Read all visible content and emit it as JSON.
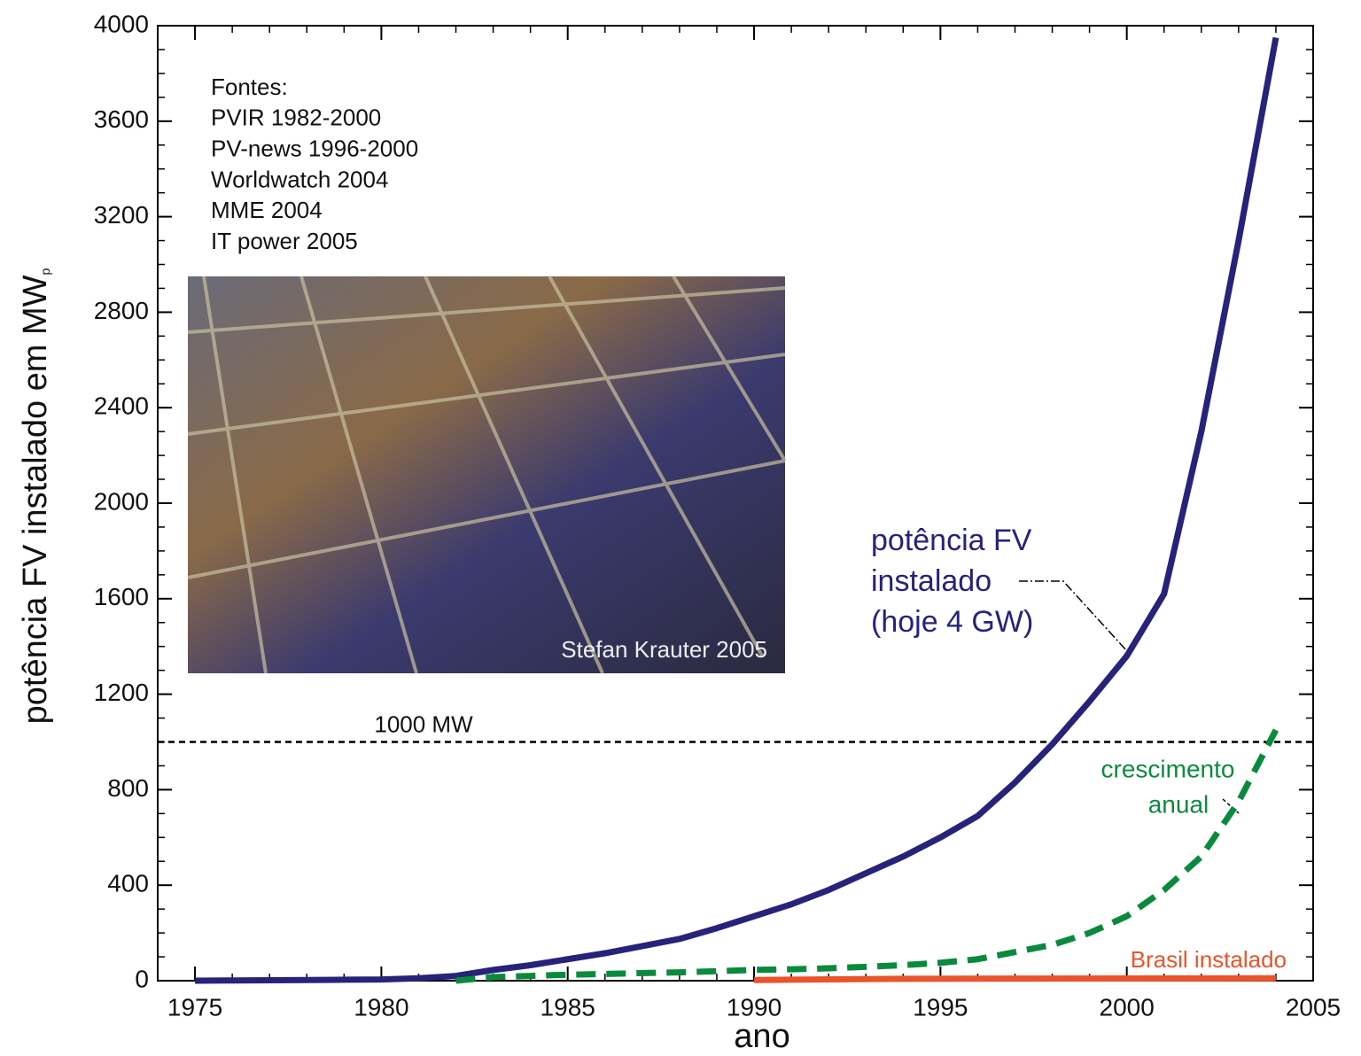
{
  "chart_data": {
    "type": "line",
    "x_label": "ano",
    "y_label": "potência FV instalado em MW",
    "y_label_sub": "p",
    "xlim": [
      1974,
      2005
    ],
    "ylim": [
      0,
      4000
    ],
    "xticks": [
      1975,
      1980,
      1985,
      1990,
      1995,
      2000,
      2005
    ],
    "yticks": [
      0,
      400,
      800,
      1200,
      1600,
      2000,
      2400,
      2800,
      3200,
      3600,
      4000
    ],
    "reference_line": {
      "value": 1000,
      "label": "1000 MW"
    },
    "sources": [
      "Fontes:",
      "PVIR 1982-2000",
      "PV-news 1996-2000",
      "Worldwatch 2004",
      "MME 2004",
      "IT power 2005"
    ],
    "photo_credit": "Stefan Krauter 2005",
    "series": [
      {
        "label": [
          "potência FV",
          "instalado",
          "(hoje 4 GW)"
        ],
        "color": "#27237a",
        "dash": false,
        "x": [
          1975,
          1976,
          1977,
          1978,
          1979,
          1980,
          1981,
          1982,
          1983,
          1984,
          1985,
          1986,
          1987,
          1988,
          1989,
          1990,
          1991,
          1992,
          1993,
          1994,
          1995,
          1996,
          1997,
          1998,
          1999,
          2000,
          2001,
          2002,
          2003,
          2004
        ],
        "values": [
          0,
          1,
          2,
          3,
          4,
          5,
          10,
          20,
          45,
          65,
          90,
          115,
          145,
          175,
          220,
          270,
          320,
          380,
          450,
          520,
          600,
          690,
          830,
          990,
          1170,
          1360,
          1620,
          2300,
          3100,
          3950
        ]
      },
      {
        "label": [
          "crescimento",
          "anual"
        ],
        "color": "#0b8a3e",
        "dash": true,
        "x": [
          1982,
          1983,
          1984,
          1985,
          1986,
          1987,
          1988,
          1989,
          1990,
          1991,
          1992,
          1993,
          1994,
          1995,
          1996,
          1997,
          1998,
          1999,
          2000,
          2001,
          2002,
          2003,
          2004
        ],
        "values": [
          0,
          15,
          20,
          25,
          28,
          32,
          35,
          40,
          45,
          48,
          52,
          58,
          65,
          75,
          90,
          120,
          150,
          200,
          270,
          380,
          520,
          750,
          1050
        ]
      },
      {
        "label": [
          "Brasil instalado"
        ],
        "color": "#e8542b",
        "dash": false,
        "x": [
          1990,
          1994,
          2004
        ],
        "values": [
          3,
          8,
          10
        ]
      }
    ]
  }
}
